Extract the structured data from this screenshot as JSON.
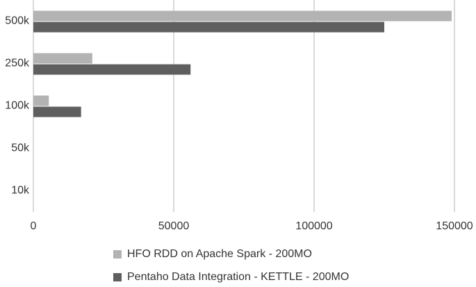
{
  "chart_data": {
    "type": "hbar",
    "categories": [
      "500k",
      "250k",
      "100k",
      "50k",
      "10k"
    ],
    "series": [
      {
        "name": "HFO RDD on Apache Spark - 200MO",
        "color": "#b3b3b3",
        "values": [
          149000,
          21000,
          5500,
          0,
          0
        ]
      },
      {
        "name": "Pentaho Data Integration - KETTLE - 200MO",
        "color": "#5f5f5f",
        "values": [
          125000,
          56000,
          17000,
          0,
          0
        ]
      }
    ],
    "xlim": [
      0,
      150000
    ],
    "xticks": [
      0,
      50000,
      100000,
      150000
    ],
    "grid": true,
    "legend": "bottom"
  }
}
